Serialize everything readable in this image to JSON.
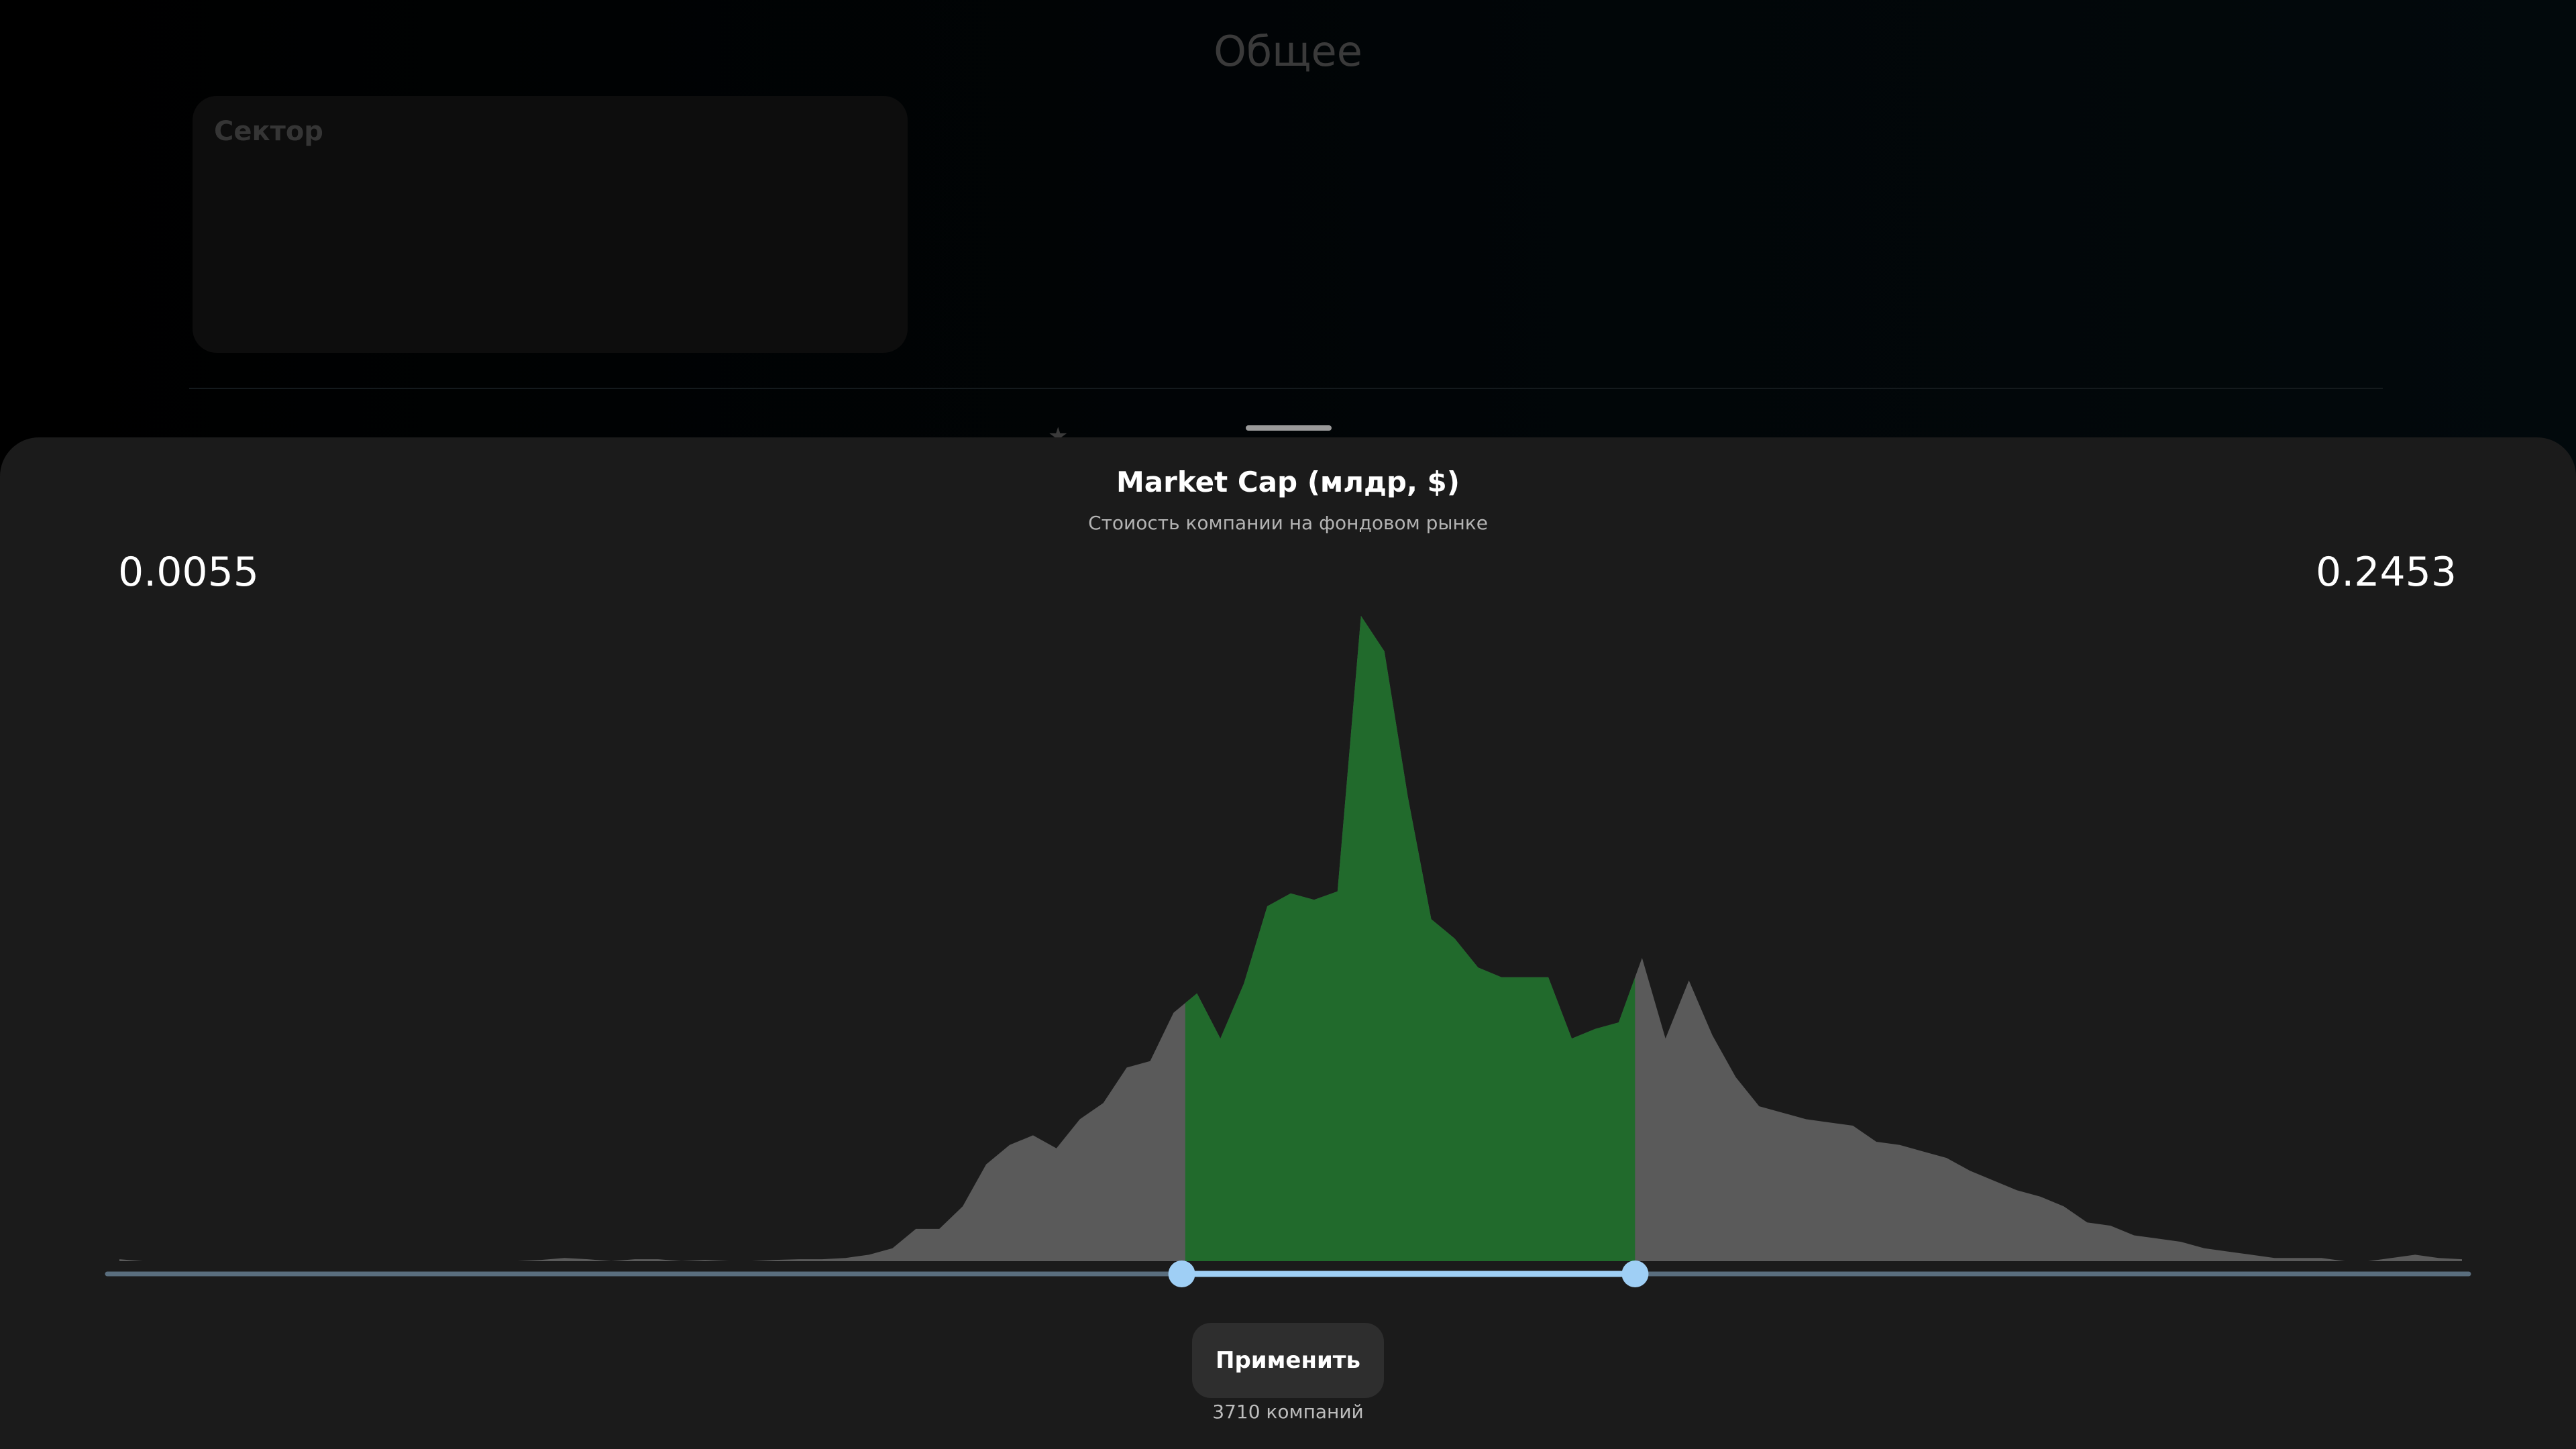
{
  "background": {
    "page_title": "Общее",
    "sector_card_label": "Сектор",
    "star_glyph": "★"
  },
  "sheet": {
    "title": "Market Cap (млдр, $)",
    "subtitle": "Стоиость компании на фондовом рынке"
  },
  "range": {
    "min_label": "0.0055",
    "max_label": "0.2453",
    "selected_start_fraction": 0.455,
    "selected_end_fraction": 0.647
  },
  "apply_button": {
    "label": "Применить"
  },
  "result_count": "3710 компаний",
  "colors": {
    "histogram_unselected": "#5a5a5a",
    "histogram_selected": "#216a2c",
    "slider_track": "#5a6e7e",
    "slider_active": "#9fcff5",
    "slider_handle": "#9fcff5"
  },
  "icons": {
    "star": "star-icon"
  },
  "chart_data": {
    "type": "area",
    "title": "",
    "xlabel": "",
    "ylabel": "",
    "x_range_labels": [
      "0.0055",
      "0.2453"
    ],
    "ylim": [
      0,
      100
    ],
    "bins": 101,
    "values": [
      0.3,
      0,
      0,
      0,
      0,
      0,
      0,
      0,
      0,
      0,
      0,
      0,
      0,
      0,
      0,
      0,
      0,
      0,
      0.2,
      0.5,
      0.3,
      0,
      0.3,
      0.3,
      0,
      0.2,
      0,
      0,
      0.2,
      0.3,
      0.3,
      0.5,
      1,
      2,
      5,
      5,
      8.5,
      15,
      18,
      19.5,
      17.5,
      22,
      24.5,
      30,
      31,
      38.5,
      41.5,
      34.5,
      43,
      55,
      57,
      56,
      57.3,
      100,
      94.5,
      72,
      53,
      50,
      45.5,
      44,
      44,
      44,
      34.5,
      36,
      37,
      47,
      34.5,
      43.5,
      35,
      28.5,
      24,
      23,
      22,
      21.5,
      21,
      18.5,
      18,
      17,
      16,
      14,
      12.5,
      11,
      10,
      8.5,
      6,
      5.5,
      4,
      3.5,
      3,
      2,
      1.5,
      1,
      0.5,
      0.5,
      0.5,
      0,
      0,
      0.5,
      1,
      0.5,
      0.3
    ]
  }
}
